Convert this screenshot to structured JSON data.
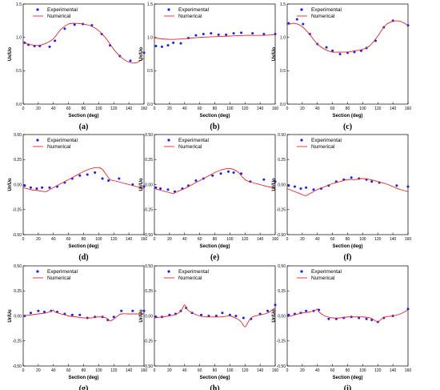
{
  "legend": {
    "experimental": "Experimental",
    "numerical": "Numerical"
  },
  "colors": {
    "experimental": "#1a1aff",
    "numerical": "#e8262b",
    "axis": "#000000"
  },
  "chart_data": [
    {
      "type": "line",
      "label": "(a)",
      "xlabel": "Section (deg)",
      "ylabel": "Ux/Uo",
      "xlim": [
        0,
        160
      ],
      "ylim": [
        0,
        1.5
      ],
      "xticks": [
        "0",
        "20",
        "40",
        "60",
        "80",
        "100",
        "120",
        "140",
        "160"
      ],
      "yticks": [
        "0.0",
        "0.5",
        "1.0",
        "1.5"
      ],
      "series": [
        {
          "name": "Experimental",
          "kind": "scatter",
          "x": [
            2,
            7,
            15,
            22,
            35,
            42,
            55,
            68,
            79,
            91,
            104,
            115,
            128,
            142,
            160
          ],
          "y": [
            0.92,
            0.89,
            0.87,
            0.87,
            0.86,
            0.95,
            1.13,
            1.19,
            1.2,
            1.18,
            1.05,
            0.88,
            0.72,
            0.65,
            0.77
          ]
        },
        {
          "name": "Numerical",
          "kind": "line",
          "x": [
            0,
            10,
            20,
            30,
            40,
            50,
            60,
            70,
            80,
            90,
            100,
            110,
            120,
            130,
            140,
            150,
            160
          ],
          "y": [
            0.92,
            0.89,
            0.88,
            0.91,
            0.98,
            1.12,
            1.2,
            1.21,
            1.2,
            1.17,
            1.1,
            0.98,
            0.82,
            0.7,
            0.63,
            0.62,
            0.69
          ]
        }
      ]
    },
    {
      "type": "line",
      "label": "(b)",
      "xlabel": "Section (deg)",
      "ylabel": "Ux/Uo",
      "xlim": [
        0,
        160
      ],
      "ylim": [
        0,
        1.5
      ],
      "xticks": [
        "0",
        "20",
        "40",
        "60",
        "80",
        "100",
        "120",
        "140",
        "160"
      ],
      "yticks": [
        "0.0",
        "0.5",
        "1.0",
        "1.5"
      ],
      "series": [
        {
          "name": "Experimental",
          "kind": "scatter",
          "x": [
            2,
            10,
            18,
            25,
            35,
            45,
            55,
            65,
            75,
            85,
            95,
            105,
            115,
            130,
            145,
            160
          ],
          "y": [
            0.87,
            0.86,
            0.88,
            0.92,
            0.91,
            0.99,
            1.03,
            1.05,
            1.06,
            1.04,
            1.04,
            1.06,
            1.07,
            1.06,
            1.05,
            1.05
          ]
        },
        {
          "name": "Numerical",
          "kind": "line",
          "x": [
            0,
            20,
            40,
            60,
            80,
            100,
            120,
            140,
            160
          ],
          "y": [
            0.99,
            0.97,
            0.98,
            1.0,
            1.01,
            1.02,
            1.03,
            1.03,
            1.04
          ]
        }
      ]
    },
    {
      "type": "line",
      "label": "(c)",
      "xlabel": "Section (deg)",
      "ylabel": "Ux/Uo",
      "xlim": [
        0,
        160
      ],
      "ylim": [
        0,
        1.5
      ],
      "xticks": [
        "0",
        "20",
        "40",
        "60",
        "80",
        "100",
        "120",
        "140",
        "160"
      ],
      "yticks": [
        "0.0",
        "0.5",
        "1.0",
        "1.5"
      ],
      "series": [
        {
          "name": "Experimental",
          "kind": "scatter",
          "x": [
            2,
            13,
            21,
            30,
            40,
            52,
            60,
            70,
            80,
            89,
            98,
            105,
            117,
            128,
            140,
            160
          ],
          "y": [
            1.21,
            1.27,
            1.2,
            1.05,
            0.9,
            0.85,
            0.8,
            0.75,
            0.77,
            0.78,
            0.8,
            0.84,
            0.95,
            1.15,
            1.25,
            1.18
          ]
        },
        {
          "name": "Numerical",
          "kind": "line",
          "x": [
            0,
            10,
            20,
            30,
            40,
            50,
            60,
            70,
            80,
            90,
            100,
            110,
            120,
            130,
            140,
            150,
            160
          ],
          "y": [
            1.19,
            1.21,
            1.16,
            1.04,
            0.9,
            0.82,
            0.78,
            0.78,
            0.78,
            0.8,
            0.82,
            0.88,
            1.02,
            1.18,
            1.24,
            1.24,
            1.18
          ]
        }
      ]
    },
    {
      "type": "line",
      "label": "(d)",
      "xlabel": "Section (deg)",
      "ylabel": "Ur/Uo",
      "xlim": [
        0,
        160
      ],
      "ylim": [
        -0.5,
        0.5
      ],
      "xticks": [
        "0",
        "20",
        "40",
        "60",
        "80",
        "100",
        "120",
        "140",
        "160"
      ],
      "yticks": [
        "-0.50",
        "-0.25",
        "0.00",
        "0.25",
        "0.50"
      ],
      "series": [
        {
          "name": "Experimental",
          "kind": "scatter",
          "x": [
            2,
            10,
            18,
            25,
            35,
            45,
            55,
            65,
            75,
            85,
            95,
            105,
            113,
            127,
            145,
            160
          ],
          "y": [
            -0.01,
            -0.03,
            -0.04,
            -0.03,
            -0.03,
            -0.02,
            0.02,
            0.06,
            0.09,
            0.1,
            0.12,
            0.06,
            0.04,
            0.06,
            0.0,
            -0.02
          ]
        },
        {
          "name": "Numerical",
          "kind": "line",
          "x": [
            0,
            10,
            20,
            30,
            35,
            40,
            50,
            60,
            70,
            80,
            90,
            100,
            105,
            110,
            115,
            120,
            130,
            140,
            150,
            160
          ],
          "y": [
            -0.03,
            -0.05,
            -0.06,
            -0.07,
            -0.05,
            -0.03,
            0.01,
            0.05,
            0.09,
            0.13,
            0.16,
            0.17,
            0.15,
            0.1,
            0.05,
            0.04,
            0.02,
            0.0,
            -0.02,
            -0.04
          ]
        }
      ]
    },
    {
      "type": "line",
      "label": "(e)",
      "xlabel": "Section (deg)",
      "ylabel": "Ur/Uo",
      "xlim": [
        0,
        160
      ],
      "ylim": [
        -0.5,
        0.5
      ],
      "xticks": [
        "0",
        "20",
        "40",
        "60",
        "80",
        "100",
        "120",
        "140",
        "160"
      ],
      "yticks": [
        "-0.50",
        "-0.25",
        "0.00",
        "0.25",
        "0.50"
      ],
      "series": [
        {
          "name": "Experimental",
          "kind": "scatter",
          "x": [
            2,
            8,
            18,
            27,
            37,
            45,
            55,
            65,
            77,
            88,
            98,
            105,
            115,
            127,
            145,
            160
          ],
          "y": [
            -0.03,
            -0.04,
            -0.05,
            -0.07,
            -0.04,
            -0.01,
            0.04,
            0.06,
            0.09,
            0.11,
            0.13,
            0.12,
            0.11,
            0.03,
            0.05,
            0.03
          ]
        },
        {
          "name": "Numerical",
          "kind": "line",
          "x": [
            0,
            10,
            20,
            25,
            30,
            40,
            50,
            60,
            70,
            80,
            90,
            100,
            110,
            120,
            130,
            140,
            150,
            160
          ],
          "y": [
            -0.04,
            -0.06,
            -0.08,
            -0.09,
            -0.07,
            -0.04,
            0.0,
            0.04,
            0.08,
            0.12,
            0.15,
            0.16,
            0.13,
            0.05,
            0.02,
            0.0,
            -0.02,
            -0.03
          ]
        }
      ]
    },
    {
      "type": "line",
      "label": "(f)",
      "xlabel": "Section (deg)",
      "ylabel": "Ur/Uo",
      "xlim": [
        0,
        160
      ],
      "ylim": [
        -0.5,
        0.5
      ],
      "xticks": [
        "0",
        "20",
        "40",
        "60",
        "80",
        "100",
        "120",
        "140",
        "160"
      ],
      "yticks": [
        "-0.50",
        "-0.25",
        "0.00",
        "0.25",
        "0.50"
      ],
      "series": [
        {
          "name": "Experimental",
          "kind": "scatter",
          "x": [
            2,
            10,
            18,
            25,
            35,
            45,
            55,
            65,
            75,
            85,
            95,
            105,
            112,
            122,
            145,
            160
          ],
          "y": [
            -0.01,
            -0.02,
            -0.04,
            -0.03,
            -0.05,
            -0.04,
            -0.01,
            0.03,
            0.05,
            0.07,
            0.06,
            0.05,
            0.03,
            0.02,
            -0.01,
            -0.02
          ]
        },
        {
          "name": "Numerical",
          "kind": "line",
          "x": [
            0,
            10,
            20,
            25,
            30,
            40,
            50,
            60,
            70,
            80,
            90,
            100,
            110,
            120,
            130,
            140,
            150,
            160
          ],
          "y": [
            -0.04,
            -0.07,
            -0.1,
            -0.11,
            -0.09,
            -0.05,
            -0.02,
            0.01,
            0.03,
            0.05,
            0.05,
            0.06,
            0.05,
            0.03,
            0.01,
            -0.02,
            -0.05,
            -0.07
          ]
        }
      ]
    },
    {
      "type": "line",
      "label": "(g)",
      "xlabel": "Section (deg)",
      "ylabel": "Ur/Uo",
      "xlim": [
        0,
        160
      ],
      "ylim": [
        -0.5,
        0.5
      ],
      "xticks": [
        "0",
        "20",
        "40",
        "60",
        "80",
        "100",
        "120",
        "140",
        "160"
      ],
      "yticks": [
        "-0.50",
        "-0.25",
        "0.00",
        "0.25",
        "0.50"
      ],
      "series": [
        {
          "name": "Experimental",
          "kind": "scatter",
          "x": [
            2,
            10,
            20,
            28,
            37,
            45,
            55,
            65,
            75,
            85,
            95,
            105,
            112,
            120,
            130,
            145,
            160
          ],
          "y": [
            0.0,
            0.03,
            0.05,
            0.04,
            0.05,
            0.04,
            0.02,
            0.01,
            0.01,
            -0.02,
            -0.01,
            -0.01,
            -0.04,
            -0.01,
            0.05,
            0.05,
            0.05
          ]
        },
        {
          "name": "Numerical",
          "kind": "line",
          "x": [
            0,
            10,
            20,
            30,
            38,
            40,
            42,
            50,
            60,
            70,
            80,
            90,
            100,
            110,
            115,
            120,
            125,
            130,
            140,
            150,
            160
          ],
          "y": [
            0.0,
            0.01,
            0.02,
            0.03,
            0.05,
            0.06,
            0.04,
            0.02,
            0.0,
            -0.01,
            -0.02,
            -0.02,
            -0.01,
            -0.02,
            -0.05,
            -0.03,
            0.0,
            0.02,
            0.02,
            0.02,
            0.02
          ]
        }
      ]
    },
    {
      "type": "line",
      "label": "(h)",
      "xlabel": "Section (deg)",
      "ylabel": "Ur/Uo",
      "xlim": [
        0,
        160
      ],
      "ylim": [
        -0.5,
        0.5
      ],
      "xticks": [
        "0",
        "20",
        "40",
        "60",
        "80",
        "100",
        "120",
        "140",
        "160"
      ],
      "yticks": [
        "-0.50",
        "-0.25",
        "0.00",
        "0.25",
        "0.50"
      ],
      "series": [
        {
          "name": "Experimental",
          "kind": "scatter",
          "x": [
            2,
            10,
            20,
            28,
            35,
            42,
            50,
            62,
            72,
            82,
            90,
            100,
            108,
            118,
            128,
            140,
            150,
            160
          ],
          "y": [
            -0.01,
            -0.01,
            0.01,
            0.02,
            0.05,
            0.08,
            0.03,
            0.01,
            0.0,
            0.0,
            0.03,
            0.01,
            0.0,
            -0.02,
            -0.03,
            0.02,
            0.05,
            0.11
          ]
        },
        {
          "name": "Numerical",
          "kind": "line",
          "x": [
            0,
            10,
            20,
            30,
            36,
            40,
            44,
            50,
            60,
            70,
            80,
            90,
            100,
            110,
            115,
            120,
            125,
            130,
            140,
            150,
            160
          ],
          "y": [
            -0.02,
            -0.01,
            0.0,
            0.02,
            0.06,
            0.11,
            0.06,
            0.03,
            0.0,
            -0.01,
            -0.01,
            -0.01,
            0.0,
            -0.03,
            -0.06,
            -0.11,
            -0.05,
            -0.01,
            0.01,
            0.03,
            0.08
          ]
        }
      ]
    },
    {
      "type": "line",
      "label": "(i)",
      "xlabel": "Section (deg)",
      "ylabel": "Ur/Uo",
      "xlim": [
        0,
        160
      ],
      "ylim": [
        -0.5,
        0.5
      ],
      "xticks": [
        "0",
        "20",
        "40",
        "60",
        "80",
        "100",
        "120",
        "140",
        "160"
      ],
      "yticks": [
        "-0.50",
        "-0.25",
        "0.00",
        "0.25",
        "0.50"
      ],
      "series": [
        {
          "name": "Experimental",
          "kind": "scatter",
          "x": [
            2,
            10,
            18,
            25,
            35,
            42,
            55,
            65,
            75,
            85,
            95,
            105,
            112,
            120,
            128,
            140,
            160
          ],
          "y": [
            0.01,
            0.02,
            0.03,
            0.05,
            0.05,
            0.06,
            -0.03,
            -0.03,
            -0.02,
            -0.01,
            -0.02,
            -0.03,
            -0.04,
            -0.06,
            -0.02,
            0.0,
            0.07
          ]
        },
        {
          "name": "Numerical",
          "kind": "line",
          "x": [
            0,
            10,
            20,
            30,
            38,
            40,
            42,
            50,
            60,
            70,
            80,
            90,
            100,
            110,
            115,
            120,
            125,
            130,
            140,
            150,
            160
          ],
          "y": [
            -0.01,
            0.01,
            0.03,
            0.04,
            0.06,
            0.07,
            0.04,
            0.0,
            -0.02,
            -0.02,
            -0.01,
            -0.01,
            -0.01,
            -0.02,
            -0.04,
            -0.06,
            -0.03,
            -0.01,
            0.0,
            0.02,
            0.06
          ]
        }
      ]
    }
  ]
}
